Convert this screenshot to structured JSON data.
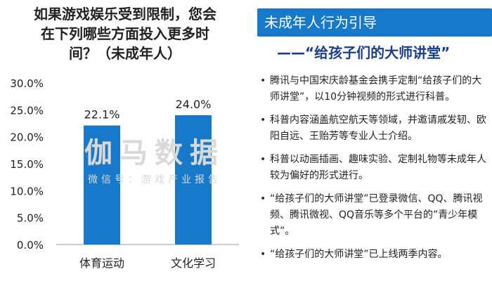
{
  "chart_title_lines": [
    "如果游戏娱乐受到限制，您会",
    "在下列哪些方面投入更多时",
    "间？（未成年人）"
  ],
  "watermark": {
    "main": "伽马数据",
    "sub": "微信号：游戏产业报告"
  },
  "colors": {
    "bar": "#1779c9",
    "banner": "#1779c9",
    "subhead": "#1a3e8c"
  },
  "chart_data": {
    "type": "bar",
    "categories": [
      "体育运动",
      "文化学习"
    ],
    "values": [
      22.1,
      24.0
    ],
    "data_labels": [
      "22.1%",
      "24.0%"
    ],
    "ylim": [
      0,
      30
    ],
    "y_ticks": [
      "0.0%",
      "5.0%",
      "10.0%",
      "15.0%",
      "20.0%",
      "25.0%",
      "30.0%"
    ],
    "y_tick_values": [
      0,
      5,
      10,
      15,
      20,
      25,
      30
    ],
    "xlabel": "",
    "ylabel": "",
    "grid": false,
    "legend": "none"
  },
  "panel": {
    "banner": "未成年人行为引导",
    "subheading": "——“给孩子们的大师讲堂”",
    "bullets": [
      "腾讯与中国宋庆龄基金会携手定制“给孩子们的大师讲堂”，以10分钟视频的形式进行科普。",
      "科普内容涵盖航空航天等领域，并邀请戚发轫、欧阳自远、王贻芳等专业人士介绍。",
      "科普以动画插画、趣味实验、定制礼物等未成年人较为偏好的形式进行。",
      "“给孩子们的大师讲堂”已登录微信、QQ、腾讯视频、腾讯微视、QQ音乐等多个平台的”青少年模式”。",
      "“给孩子们的大师讲堂”已上线两季内容。"
    ]
  }
}
